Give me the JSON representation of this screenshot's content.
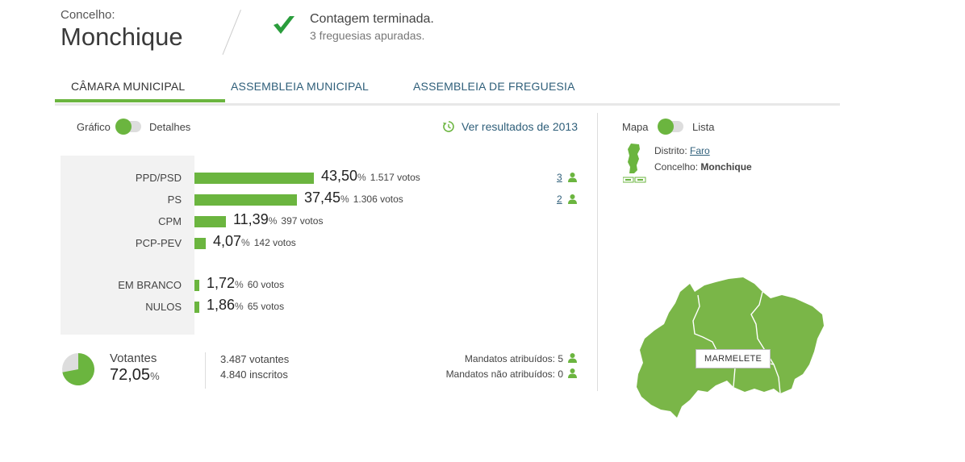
{
  "header": {
    "label": "Concelho:",
    "title": "Monchique",
    "status_title": "Contagem terminada.",
    "status_sub": "3 freguesias apuradas."
  },
  "tabs": [
    {
      "label": "CÂMARA MUNICIPAL",
      "active": true
    },
    {
      "label": "ASSEMBLEIA MUNICIPAL",
      "active": false
    },
    {
      "label": "ASSEMBLEIA DE FREGUESIA",
      "active": false
    }
  ],
  "view_toggle": {
    "left": "Gráfico",
    "right": "Detalhes"
  },
  "history_link": "Ver resultados de 2013",
  "results": [
    {
      "party": "PPD/PSD",
      "pct": "43,50",
      "pct_value": 43.5,
      "votes": "1.517 votos",
      "mandates": "3"
    },
    {
      "party": "PS",
      "pct": "37,45",
      "pct_value": 37.45,
      "votes": "1.306 votos",
      "mandates": "2"
    },
    {
      "party": "CPM",
      "pct": "11,39",
      "pct_value": 11.39,
      "votes": "397 votos",
      "mandates": ""
    },
    {
      "party": "PCP-PEV",
      "pct": "4,07",
      "pct_value": 4.07,
      "votes": "142 votos",
      "mandates": ""
    }
  ],
  "others": [
    {
      "party": "EM BRANCO",
      "pct": "1,72",
      "pct_value": 1.72,
      "votes": "60 votos"
    },
    {
      "party": "NULOS",
      "pct": "1,86",
      "pct_value": 1.86,
      "votes": "65 votos"
    }
  ],
  "pct_symbol": "%",
  "turnout": {
    "label": "Votantes",
    "pct": "72,05",
    "pct_value": 72.05,
    "voters": "3.487 votantes",
    "registered": "4.840 inscritos"
  },
  "mandates_summary": {
    "assigned": "Mandatos atribuídos: 5",
    "unassigned": "Mandatos não atribuídos: 0"
  },
  "map_panel": {
    "toggle_left": "Mapa",
    "toggle_right": "Lista",
    "district_label": "Distrito:",
    "district": "Faro",
    "county_label": "Concelho:",
    "county": "Monchique",
    "region_label": "MARMELETE"
  },
  "colors": {
    "accent": "#6bb53f",
    "link": "#2f5f7a",
    "map_fill": "#7ab648"
  }
}
